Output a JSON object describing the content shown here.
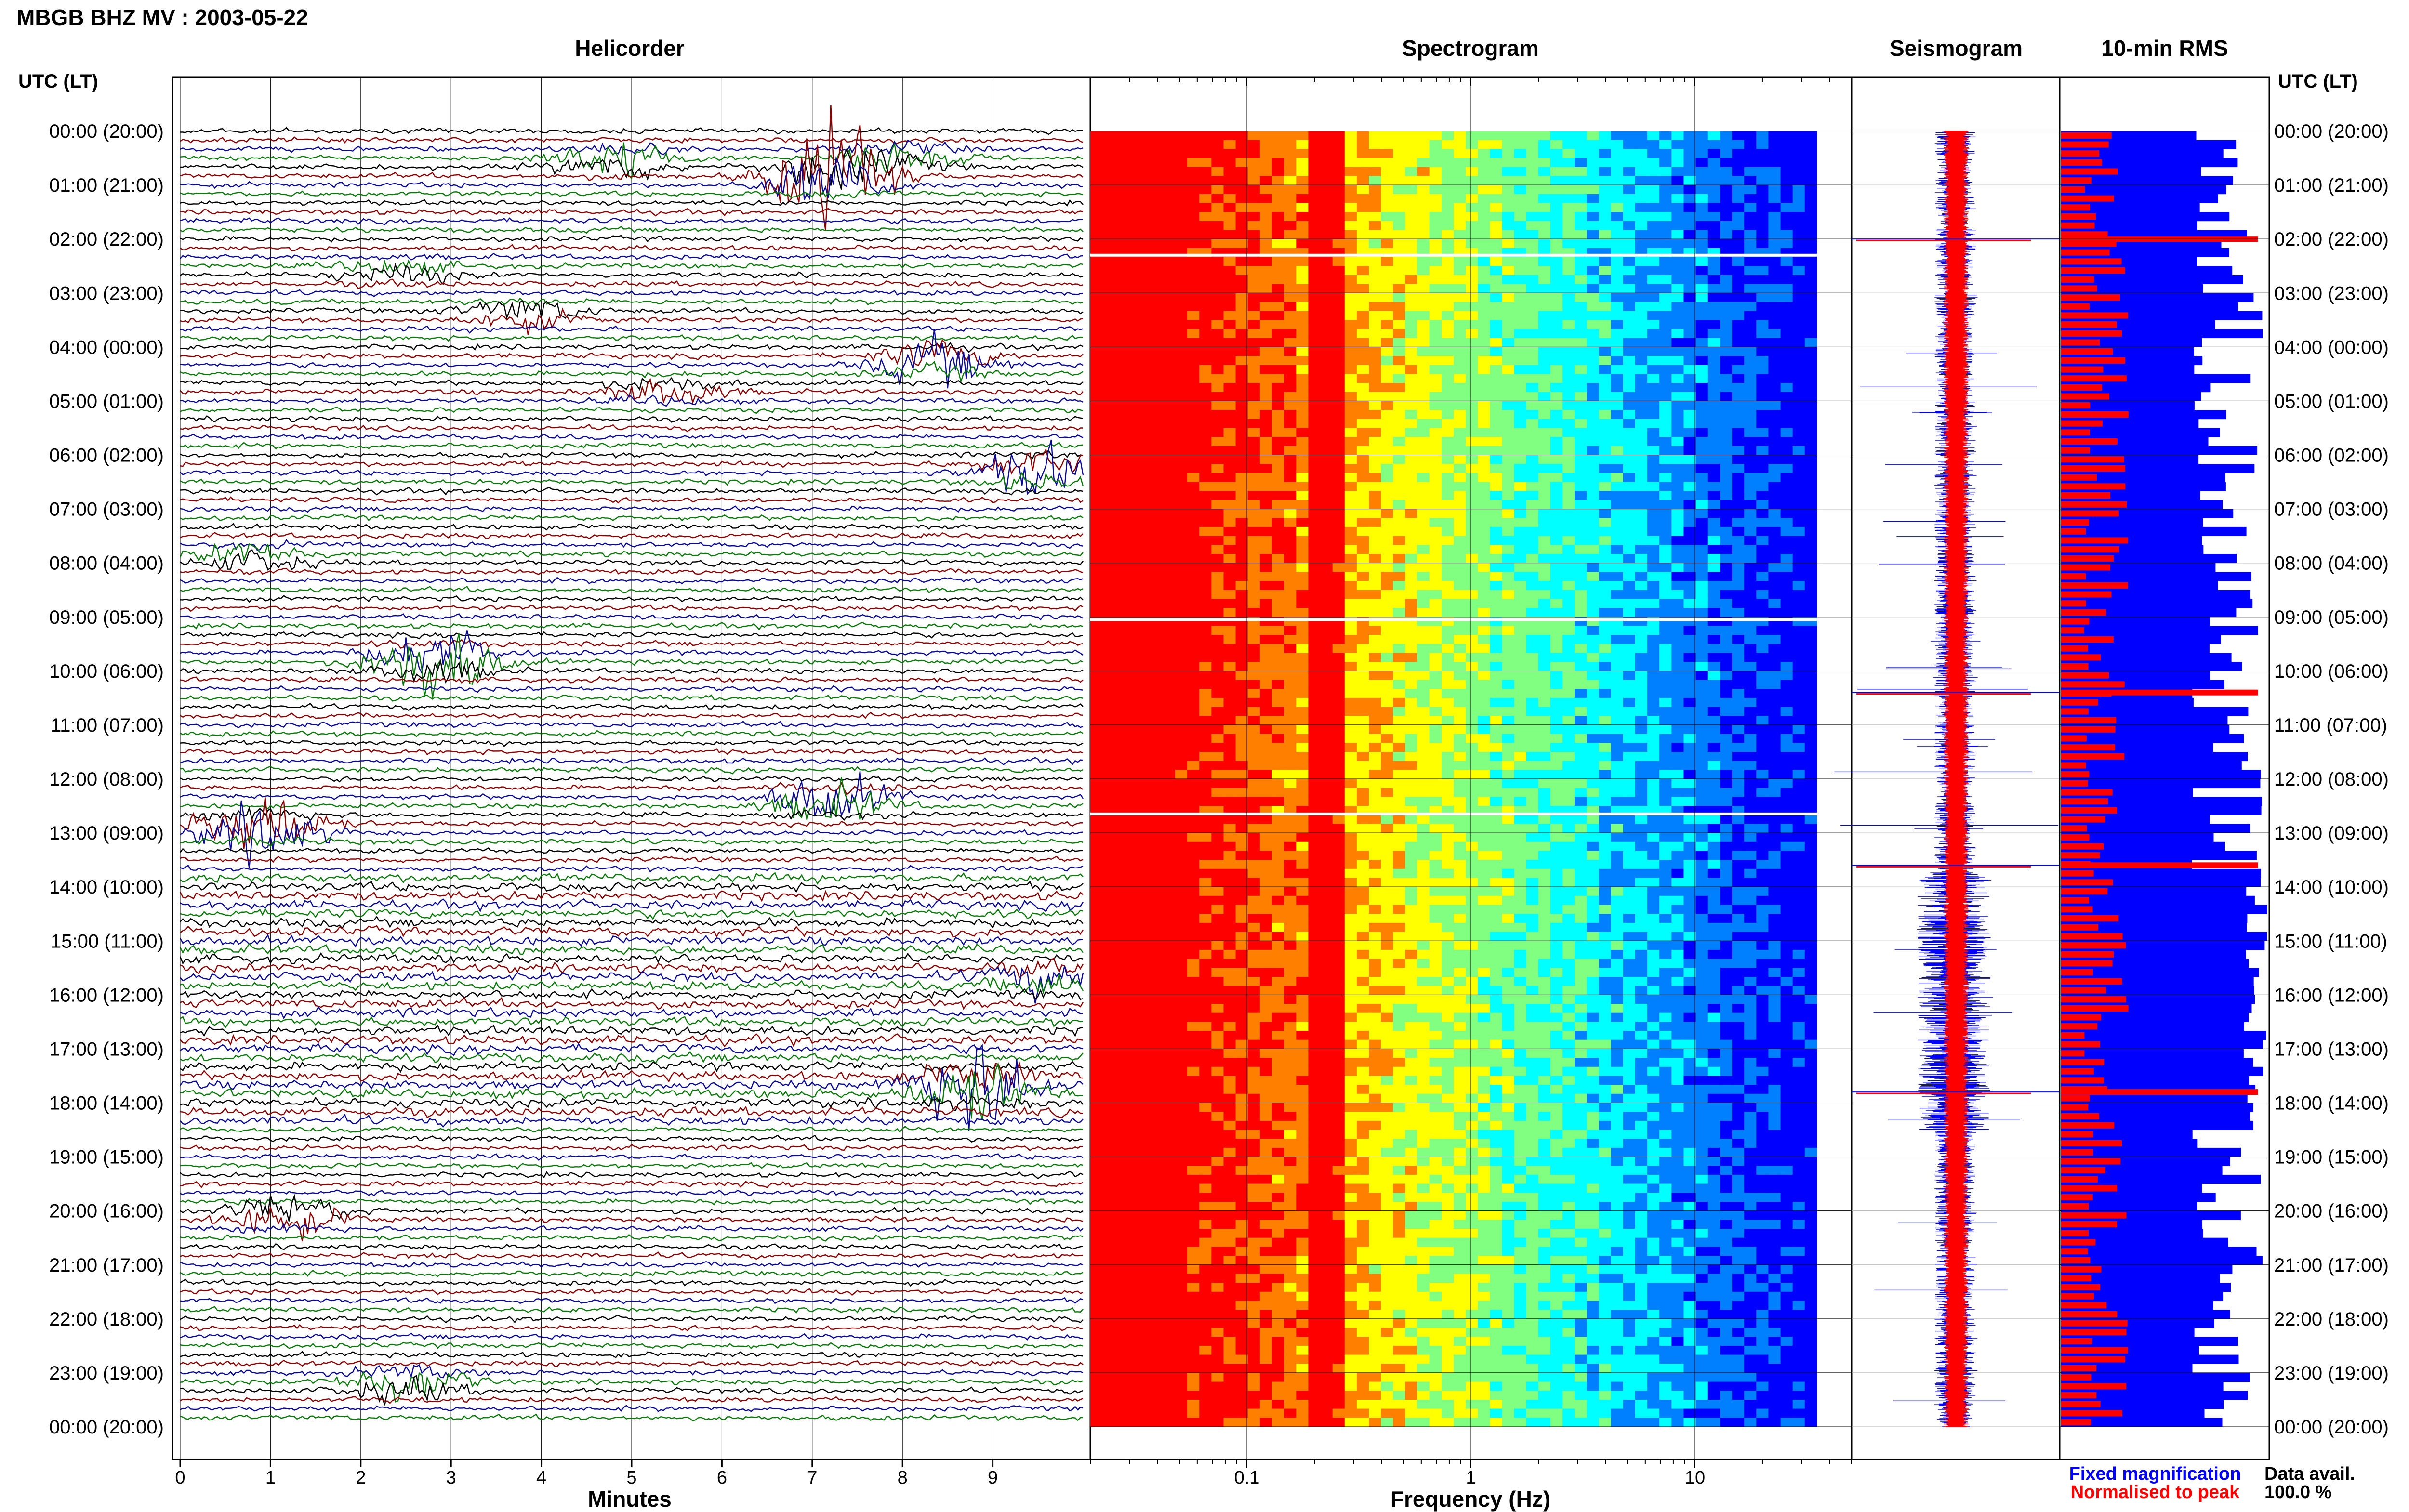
{
  "page_title": "MBGB BHZ MV : 2003-05-22",
  "panels": {
    "helicorder": "Helicorder",
    "spectrogram": "Spectrogram",
    "seismogram": "Seismogram",
    "rms": "10-min RMS"
  },
  "time_axis_label": "UTC (LT)",
  "time_labels": [
    "00:00 (20:00)",
    "01:00 (21:00)",
    "02:00 (22:00)",
    "03:00 (23:00)",
    "04:00 (00:00)",
    "05:00 (01:00)",
    "06:00 (02:00)",
    "07:00 (03:00)",
    "08:00 (04:00)",
    "09:00 (05:00)",
    "10:00 (06:00)",
    "11:00 (07:00)",
    "12:00 (08:00)",
    "13:00 (09:00)",
    "14:00 (10:00)",
    "15:00 (11:00)",
    "16:00 (12:00)",
    "17:00 (13:00)",
    "18:00 (14:00)",
    "19:00 (15:00)",
    "20:00 (16:00)",
    "21:00 (17:00)",
    "22:00 (18:00)",
    "23:00 (19:00)",
    "00:00 (20:00)"
  ],
  "legend": {
    "fixed": "Fixed magnification",
    "normalised": "Normalised to peak"
  },
  "data_avail": {
    "label": "Data avail.",
    "value": "100.0 %"
  },
  "colors": {
    "trace_black": "#000000",
    "trace_red": "#8b0000",
    "trace_blue": "#0a0a96",
    "trace_green": "#0a7a0a",
    "rms_blue": "#0000ff",
    "rms_red": "#ff0000"
  },
  "chart_data": [
    {
      "type": "line",
      "title": "Helicorder",
      "xlabel": "Minutes",
      "x_ticks": [
        0,
        1,
        2,
        3,
        4,
        5,
        6,
        7,
        8,
        9
      ],
      "xlim": [
        0,
        10
      ],
      "rows": 144,
      "row_minutes": 10,
      "color_cycle": [
        "#000000",
        "#8b0000",
        "#0a0a96",
        "#0a7a0a"
      ],
      "events": [
        {
          "hour": 0.85,
          "minute": 7.2,
          "amplitude": 4.5
        },
        {
          "hour": 0.55,
          "minute": 4.8,
          "amplitude": 1.5
        },
        {
          "hour": 0.5,
          "minute": 7.9,
          "amplitude": 1.2
        },
        {
          "hour": 2.6,
          "minute": 2.4,
          "amplitude": 0.8
        },
        {
          "hour": 3.4,
          "minute": 3.8,
          "amplitude": 1.0
        },
        {
          "hour": 4.3,
          "minute": 8.4,
          "amplitude": 1.8
        },
        {
          "hour": 4.8,
          "minute": 5.4,
          "amplitude": 1.0
        },
        {
          "hour": 6.3,
          "minute": 9.5,
          "amplitude": 2.0
        },
        {
          "hour": 7.9,
          "minute": 0.8,
          "amplitude": 1.0
        },
        {
          "hour": 9.8,
          "minute": 2.8,
          "amplitude": 3.2
        },
        {
          "hour": 12.9,
          "minute": 0.9,
          "amplitude": 3.0
        },
        {
          "hour": 12.4,
          "minute": 7.2,
          "amplitude": 2.0
        },
        {
          "hour": 15.7,
          "minute": 9.6,
          "amplitude": 1.2
        },
        {
          "hour": 17.7,
          "minute": 8.8,
          "amplitude": 3.8
        },
        {
          "hour": 20.1,
          "minute": 1.2,
          "amplitude": 1.5
        },
        {
          "hour": 23.2,
          "minute": 2.5,
          "amplitude": 1.6
        }
      ]
    },
    {
      "type": "heatmap",
      "title": "Spectrogram",
      "xlabel": "Frequency (Hz)",
      "x_scale": "log",
      "x_ticks": [
        0.1,
        1,
        10
      ],
      "xlim": [
        0.02,
        50
      ],
      "spectrum_end_hz": 35,
      "colormap": [
        "#ff0000",
        "#ff8000",
        "#ffff00",
        "#80ff80",
        "#00ffff",
        "#0080ff",
        "#0000ff",
        "#00008b"
      ],
      "data_gap_hours": [
        2.3,
        9.05,
        12.65
      ]
    },
    {
      "type": "line",
      "title": "Seismogram",
      "series": [
        {
          "name": "Fixed magnification",
          "color": "#0000ff"
        },
        {
          "name": "Normalised to peak",
          "color": "#ff0000"
        }
      ]
    },
    {
      "type": "bar",
      "title": "10-min RMS",
      "orientation": "horizontal",
      "bins": 144,
      "series": [
        {
          "name": "Fixed magnification",
          "color": "#0000ff",
          "typical_fraction": 0.8
        },
        {
          "name": "Normalised to peak",
          "color": "#ff0000",
          "typical_fraction": 0.22
        }
      ]
    }
  ]
}
